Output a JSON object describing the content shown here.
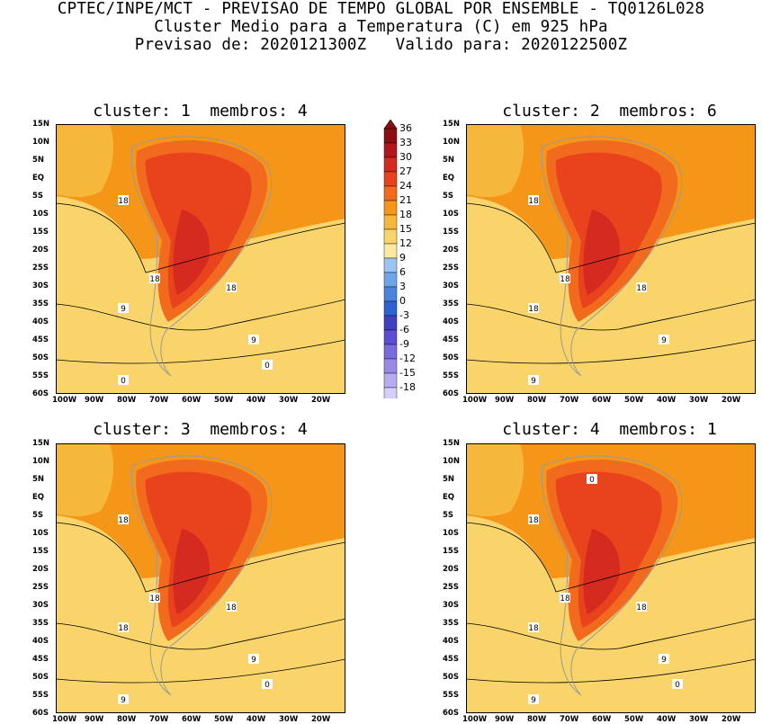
{
  "title": {
    "line1": "CPTEC/INPE/MCT - PREVISAO DE TEMPO GLOBAL POR ENSEMBLE - TQ0126L028",
    "line2": "Cluster Medio para a Temperatura (C) em 925 hPa",
    "line3": "Previsao de: 2020121300Z   Valido para: 2020122500Z"
  },
  "panels": [
    {
      "title": "cluster: 1  membros: 4",
      "labels": [
        "18",
        "18",
        "18",
        "9",
        "9",
        "0",
        "0"
      ]
    },
    {
      "title": "cluster: 2  membros: 6",
      "labels": [
        "18",
        "18",
        "18",
        "18",
        "9",
        "9"
      ]
    },
    {
      "title": "cluster: 3  membros: 4",
      "labels": [
        "18",
        "18",
        "18",
        "18",
        "9",
        "9",
        "0"
      ]
    },
    {
      "title": "cluster: 4  membros: 1",
      "labels": [
        "18",
        "18",
        "18",
        "18",
        "9",
        "9",
        "0",
        "0"
      ]
    }
  ],
  "axes": {
    "lat_ticks": [
      "15N",
      "10N",
      "5N",
      "EQ",
      "5S",
      "10S",
      "15S",
      "20S",
      "25S",
      "30S",
      "35S",
      "40S",
      "45S",
      "50S",
      "55S",
      "60S"
    ],
    "lon_ticks": [
      "100W",
      "90W",
      "80W",
      "70W",
      "60W",
      "50W",
      "40W",
      "30W",
      "20W"
    ]
  },
  "colorbar": {
    "labels": [
      "36",
      "33",
      "30",
      "27",
      "24",
      "21",
      "18",
      "15",
      "12",
      "9",
      "6",
      "3",
      "0",
      "-3",
      "-6",
      "-9",
      "-12",
      "-15",
      "-18"
    ],
    "colors": [
      "#8b0f12",
      "#b3161a",
      "#d42a1f",
      "#e8431d",
      "#f26a1e",
      "#f59618",
      "#f5b83a",
      "#f8d46b",
      "#fae9a0",
      "#9cc4f2",
      "#6ea4ea",
      "#4a84de",
      "#2e62d2",
      "#3f3fc2",
      "#5a4fd2",
      "#7a6ae0",
      "#9a8ae8",
      "#b8abf0",
      "#d6cef8"
    ]
  }
}
